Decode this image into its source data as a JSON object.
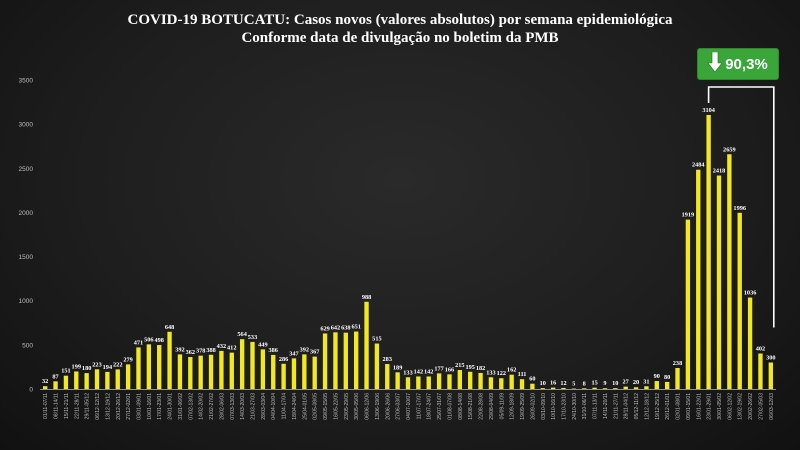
{
  "title_line1": "COVID-19 BOTUCATU: Casos novos (valores absolutos) por semana epidemiológica",
  "title_line2": "Conforme data de divulgação no boletim da PMB",
  "badge": {
    "text": "90,3%",
    "icon": "arrow-down-icon",
    "color": "#3aa63a"
  },
  "colors": {
    "bar": "#f2e81f",
    "axis": "#bdbdbd",
    "bracket": "#ffffff"
  },
  "chart_data": {
    "type": "bar",
    "ylim": [
      0,
      3500
    ],
    "yticks": [
      0,
      500,
      1000,
      1500,
      2000,
      2500,
      3000,
      3500
    ],
    "categories": [
      "01/11-07/11",
      "08/11-14/11",
      "15/11-21/11",
      "22/11-28/11",
      "29/11-05/12",
      "06/12-12/12",
      "13/12-19/12",
      "20/12-26/12",
      "27/12-02/01",
      "03/01-09/01",
      "10/01-16/01",
      "17/01-23/01",
      "24/01-30/01",
      "31/01-06/02",
      "07/02-13/02",
      "14/02-20/02",
      "21/02-27/02",
      "28/02-06/03",
      "07/03-13/03",
      "14/03-20/03",
      "21/03-27/03",
      "28/03-03/04",
      "04/04-10/04",
      "11/04-17/04",
      "18/04-24/04",
      "25/04-01/05",
      "02/05-08/05",
      "09/05-15/05",
      "16/05-22/05",
      "23/05-29/05",
      "30/05-05/06",
      "06/06-12/06",
      "13/06-19/06",
      "20/06-26/06",
      "27/06-03/07",
      "04/07-10/07",
      "11/07-17/07",
      "18/07-24/07",
      "25/07-31/07",
      "01/08-07/08",
      "08/08-14/08",
      "15/08-21/08",
      "22/08-28/08",
      "29/08-04/09",
      "05/09-11/09",
      "12/09-18/09",
      "19/09-25/09",
      "26/09-02/10",
      "03/10-09/10",
      "10/10-16/10",
      "17/10-23/10",
      "24/10-30/10",
      "31/10-06/11",
      "07/11-13/11",
      "14/11-20/11",
      "21/11-27/11",
      "28/11-04/12",
      "05/12-11/12",
      "12/12-18/12",
      "19/12-25/12",
      "26/12-01/01",
      "02/01-08/01",
      "09/01-15/01",
      "16/01-22/01",
      "23/01-29/01",
      "30/01-05/02",
      "06/02-12/02",
      "13/02-19/02",
      "20/02-26/02",
      "27/02-05/03",
      "06/03-12/03"
    ],
    "values": [
      32,
      87,
      151,
      199,
      180,
      223,
      194,
      222,
      279,
      471,
      506,
      498,
      648,
      392,
      362,
      378,
      388,
      432,
      412,
      564,
      533,
      449,
      386,
      286,
      347,
      392,
      367,
      629,
      642,
      638,
      651,
      988,
      515,
      283,
      189,
      133,
      142,
      142,
      177,
      166,
      215,
      195,
      182,
      133,
      122,
      162,
      111,
      60,
      10,
      16,
      12,
      5,
      8,
      15,
      9,
      10,
      27,
      20,
      31,
      90,
      80,
      238,
      1919,
      2484,
      3104,
      2418,
      2659,
      1996,
      1036,
      402,
      300
    ],
    "grid": false,
    "legend": "none",
    "annotation": {
      "from_index": 64,
      "to_index": 70,
      "text": "90,3%"
    }
  }
}
